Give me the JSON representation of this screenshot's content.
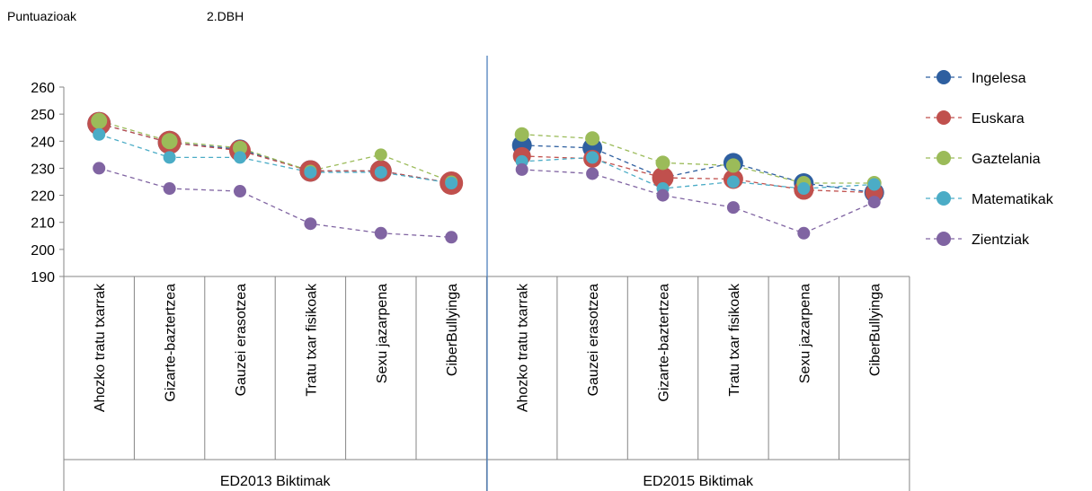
{
  "header": {
    "left": "Puntuazioak",
    "right": "2.DBH"
  },
  "chart_data": {
    "type": "line",
    "ylim": [
      190,
      260
    ],
    "yticks": [
      190,
      200,
      210,
      220,
      230,
      240,
      250,
      260
    ],
    "grid": false,
    "legend_position": "right",
    "groups": [
      {
        "label": "ED2013 Biktimak",
        "categories": [
          "Ahozko tratu txarrak",
          "Gizarte-baztertzea",
          "Gauzei erasotzea",
          "Tratu txar fisikoak",
          "Sexu jazarpena",
          "CiberBullyinga"
        ],
        "series": [
          {
            "name": "Ingelesa",
            "color": "#2E5FA0",
            "values": [
              246.5,
              239.5,
              237,
              229,
              229,
              224.5
            ],
            "marker_size": [
              13,
              13,
              11,
              12,
              12,
              12
            ]
          },
          {
            "name": "Euskara",
            "color": "#C0504D",
            "values": [
              246.5,
              239.5,
              236.5,
              229,
              229,
              224.5
            ],
            "marker_size": [
              13,
              13,
              12,
              12,
              12,
              13
            ]
          },
          {
            "name": "Gaztelania",
            "color": "#9BBB59",
            "values": [
              247.5,
              240,
              237.5,
              229,
              235,
              225
            ],
            "marker_size": [
              9,
              9,
              8,
              7,
              7,
              7
            ]
          },
          {
            "name": "Matematikak",
            "color": "#4BACC6",
            "values": [
              242.5,
              234,
              234,
              228.5,
              228.5,
              224.5
            ],
            "marker_size": [
              7,
              7,
              7,
              7,
              7,
              7
            ]
          },
          {
            "name": "Zientziak",
            "color": "#8064A2",
            "values": [
              230,
              222.5,
              221.5,
              209.5,
              206,
              204.5
            ],
            "marker_size": [
              7,
              7,
              7,
              7,
              7,
              7
            ]
          }
        ]
      },
      {
        "label": "ED2015 Biktimak",
        "categories": [
          "Ahozko tratu txarrak",
          "Gauzei erasotzea",
          "Gizarte-baztertzea",
          "Tratu txar fisikoak",
          "Sexu jazarpena",
          "CiberBullyinga"
        ],
        "series": [
          {
            "name": "Ingelesa",
            "color": "#2E5FA0",
            "values": [
              238.5,
              237.5,
              226.5,
              232,
              224.5,
              221
            ],
            "marker_size": [
              11,
              11,
              11,
              11,
              11,
              11
            ]
          },
          {
            "name": "Euskara",
            "color": "#C0504D",
            "values": [
              234.5,
              233.5,
              226.5,
              226,
              222,
              221
            ],
            "marker_size": [
              10,
              10,
              12,
              11,
              11,
              10
            ]
          },
          {
            "name": "Gaztelania",
            "color": "#9BBB59",
            "values": [
              242.5,
              241,
              232,
              231,
              224.5,
              224.5
            ],
            "marker_size": [
              8,
              8,
              8,
              8,
              8,
              8
            ]
          },
          {
            "name": "Matematikak",
            "color": "#4BACC6",
            "values": [
              232.5,
              234,
              222.5,
              225,
              222.5,
              224
            ],
            "marker_size": [
              7,
              7,
              7,
              7,
              7,
              7
            ]
          },
          {
            "name": "Zientziak",
            "color": "#8064A2",
            "values": [
              229.5,
              228,
              220,
              215.5,
              206,
              217.5
            ],
            "marker_size": [
              7,
              7,
              7,
              7,
              7,
              7
            ]
          }
        ]
      }
    ]
  }
}
